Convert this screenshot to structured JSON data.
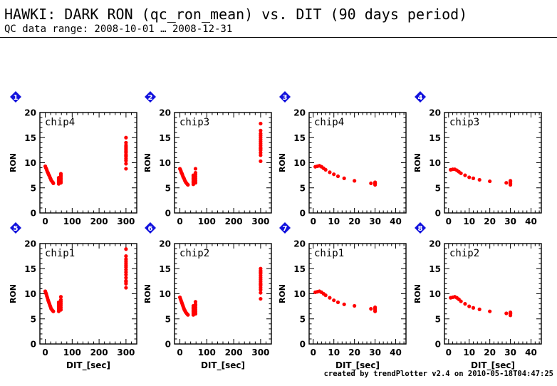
{
  "header": {
    "title": "HAWKI: DARK RON (qc_ron_mean) vs. DIT (90 days period)",
    "subtitle": "QC data range: 2008-10-01 … 2008-12-31"
  },
  "footer": "created by trendPlotter v2.4 on 2010-05-18T04:47:25",
  "colors": {
    "points": "#ff0000",
    "badge": "#1212dd",
    "badge_text": "#ffffff",
    "axes": "#000000"
  },
  "chart_data": [
    {
      "type": "scatter",
      "panel": "1",
      "label": "chip4",
      "xlabel": "",
      "ylabel": "RON",
      "xlim": [
        -20,
        340
      ],
      "ylim": [
        0,
        20
      ],
      "xticks": [
        0,
        100,
        200,
        300
      ],
      "yticks": [
        0,
        5,
        10,
        15,
        20
      ],
      "x": [
        0,
        2,
        4,
        6,
        8,
        10,
        12,
        14,
        16,
        18,
        20,
        22,
        25,
        28,
        30,
        50,
        50,
        50,
        50,
        50,
        50,
        50,
        58,
        58,
        58,
        58,
        58,
        58,
        58,
        300,
        300,
        300,
        300,
        300,
        300,
        300,
        300,
        300,
        300,
        300,
        300,
        300,
        300,
        300
      ],
      "y": [
        9.3,
        9.0,
        8.8,
        8.5,
        8.2,
        8.0,
        7.7,
        7.5,
        7.3,
        7.0,
        6.8,
        6.5,
        6.3,
        6.1,
        5.9,
        5.8,
        6.0,
        6.2,
        6.4,
        6.6,
        6.8,
        7.0,
        6.0,
        6.3,
        6.6,
        6.9,
        7.2,
        7.5,
        7.8,
        8.8,
        9.8,
        10.4,
        10.8,
        11.2,
        11.6,
        12.0,
        12.3,
        12.6,
        12.9,
        13.2,
        13.5,
        14.0,
        15.0,
        11.4
      ]
    },
    {
      "type": "scatter",
      "panel": "2",
      "label": "chip3",
      "xlabel": "",
      "ylabel": "RON",
      "xlim": [
        -20,
        340
      ],
      "ylim": [
        0,
        20
      ],
      "xticks": [
        0,
        100,
        200,
        300
      ],
      "yticks": [
        0,
        5,
        10,
        15,
        20
      ],
      "x": [
        0,
        2,
        4,
        6,
        8,
        10,
        12,
        14,
        16,
        18,
        20,
        22,
        25,
        28,
        30,
        50,
        50,
        50,
        50,
        50,
        50,
        50,
        58,
        58,
        58,
        58,
        58,
        58,
        58,
        300,
        300,
        300,
        300,
        300,
        300,
        300,
        300,
        300,
        300,
        300,
        300,
        300,
        300,
        300
      ],
      "y": [
        8.8,
        8.6,
        8.3,
        8.0,
        7.8,
        7.5,
        7.2,
        7.0,
        6.8,
        6.5,
        6.3,
        6.1,
        5.9,
        5.7,
        5.6,
        5.7,
        6.0,
        6.3,
        6.6,
        6.9,
        7.2,
        7.5,
        6.0,
        6.4,
        6.8,
        7.2,
        7.6,
        8.0,
        8.8,
        10.3,
        11.5,
        12.0,
        12.5,
        13.0,
        13.4,
        13.8,
        14.2,
        14.6,
        15.0,
        15.4,
        15.8,
        16.4,
        17.8,
        12.8
      ]
    },
    {
      "type": "scatter",
      "panel": "3",
      "label": "chip4",
      "xlabel": "",
      "ylabel": "RON",
      "xlim": [
        -2,
        45
      ],
      "ylim": [
        0,
        20
      ],
      "xticks": [
        0,
        10,
        20,
        30,
        40
      ],
      "yticks": [
        0,
        5,
        10,
        15,
        20
      ],
      "x": [
        1,
        2,
        3,
        4,
        5,
        6,
        8,
        10,
        12,
        15,
        20,
        28,
        30,
        30,
        30,
        30
      ],
      "y": [
        9.2,
        9.3,
        9.4,
        9.2,
        8.9,
        8.6,
        8.1,
        7.7,
        7.3,
        6.9,
        6.4,
        5.9,
        5.6,
        5.9,
        6.1,
        5.9
      ]
    },
    {
      "type": "scatter",
      "panel": "4",
      "label": "chip3",
      "xlabel": "",
      "ylabel": "RON",
      "xlim": [
        -2,
        45
      ],
      "ylim": [
        0,
        20
      ],
      "xticks": [
        0,
        10,
        20,
        30,
        40
      ],
      "yticks": [
        0,
        5,
        10,
        15,
        20
      ],
      "x": [
        1,
        2,
        3,
        4,
        5,
        6,
        8,
        10,
        12,
        15,
        20,
        28,
        30,
        30,
        30,
        30
      ],
      "y": [
        8.6,
        8.7,
        8.7,
        8.5,
        8.2,
        7.9,
        7.5,
        7.1,
        6.9,
        6.6,
        6.3,
        6.0,
        5.6,
        5.9,
        6.2,
        6.4
      ]
    },
    {
      "type": "scatter",
      "panel": "5",
      "label": "chip1",
      "xlabel": "DIT_[sec]",
      "ylabel": "RON",
      "xlim": [
        -20,
        340
      ],
      "ylim": [
        0,
        20
      ],
      "xticks": [
        0,
        100,
        200,
        300
      ],
      "yticks": [
        0,
        5,
        10,
        15,
        20
      ],
      "x": [
        0,
        2,
        4,
        6,
        8,
        10,
        12,
        14,
        16,
        18,
        20,
        22,
        25,
        28,
        30,
        50,
        50,
        50,
        50,
        50,
        50,
        50,
        58,
        58,
        58,
        58,
        58,
        58,
        58,
        300,
        300,
        300,
        300,
        300,
        300,
        300,
        300,
        300,
        300,
        300,
        300,
        300,
        300,
        300
      ],
      "y": [
        10.5,
        10.2,
        9.9,
        9.5,
        9.2,
        8.8,
        8.5,
        8.2,
        7.9,
        7.6,
        7.3,
        7.0,
        6.8,
        6.6,
        6.5,
        6.5,
        6.8,
        7.1,
        7.4,
        7.7,
        8.0,
        8.3,
        6.8,
        7.2,
        7.6,
        8.0,
        8.4,
        8.8,
        9.4,
        11.2,
        12.0,
        12.6,
        13.2,
        13.8,
        14.3,
        14.8,
        15.3,
        15.7,
        16.1,
        16.5,
        16.9,
        17.5,
        18.9,
        12.4
      ]
    },
    {
      "type": "scatter",
      "panel": "6",
      "label": "chip2",
      "xlabel": "DIT_[sec]",
      "ylabel": "RON",
      "xlim": [
        -20,
        340
      ],
      "ylim": [
        0,
        20
      ],
      "xticks": [
        0,
        100,
        200,
        300
      ],
      "yticks": [
        0,
        5,
        10,
        15,
        20
      ],
      "x": [
        0,
        2,
        4,
        6,
        8,
        10,
        12,
        14,
        16,
        18,
        20,
        22,
        25,
        28,
        30,
        50,
        50,
        50,
        50,
        50,
        50,
        50,
        58,
        58,
        58,
        58,
        58,
        58,
        58,
        300,
        300,
        300,
        300,
        300,
        300,
        300,
        300,
        300,
        300,
        300,
        300,
        300,
        300,
        300
      ],
      "y": [
        9.3,
        9.0,
        8.7,
        8.4,
        8.1,
        7.8,
        7.5,
        7.2,
        6.9,
        6.7,
        6.5,
        6.3,
        6.1,
        5.9,
        5.8,
        5.8,
        6.1,
        6.4,
        6.7,
        7.0,
        7.3,
        7.6,
        6.0,
        6.4,
        6.8,
        7.2,
        7.6,
        7.9,
        8.4,
        9.0,
        10.2,
        10.8,
        11.2,
        11.6,
        12.0,
        12.4,
        12.8,
        13.2,
        13.6,
        14.0,
        14.3,
        14.6,
        15.0,
        11.9
      ]
    },
    {
      "type": "scatter",
      "panel": "7",
      "label": "chip1",
      "xlabel": "DIT_[sec]",
      "ylabel": "RON",
      "xlim": [
        -2,
        45
      ],
      "ylim": [
        0,
        20
      ],
      "xticks": [
        0,
        10,
        20,
        30,
        40
      ],
      "yticks": [
        0,
        5,
        10,
        15,
        20
      ],
      "x": [
        1,
        2,
        3,
        4,
        5,
        6,
        8,
        10,
        12,
        15,
        20,
        28,
        30,
        30,
        30,
        30
      ],
      "y": [
        10.3,
        10.4,
        10.5,
        10.3,
        10.0,
        9.7,
        9.2,
        8.7,
        8.3,
        7.9,
        7.6,
        7.0,
        6.5,
        6.8,
        7.1,
        7.3
      ]
    },
    {
      "type": "scatter",
      "panel": "8",
      "label": "chip2",
      "xlabel": "DIT_[sec]",
      "ylabel": "RON",
      "xlim": [
        -2,
        45
      ],
      "ylim": [
        0,
        20
      ],
      "xticks": [
        0,
        10,
        20,
        30,
        40
      ],
      "yticks": [
        0,
        5,
        10,
        15,
        20
      ],
      "x": [
        1,
        2,
        3,
        4,
        5,
        6,
        8,
        10,
        12,
        15,
        20,
        28,
        30,
        30,
        30,
        30
      ],
      "y": [
        9.2,
        9.3,
        9.4,
        9.2,
        8.9,
        8.5,
        8.0,
        7.5,
        7.2,
        6.9,
        6.5,
        6.1,
        5.7,
        6.0,
        6.3,
        6.1
      ]
    }
  ]
}
